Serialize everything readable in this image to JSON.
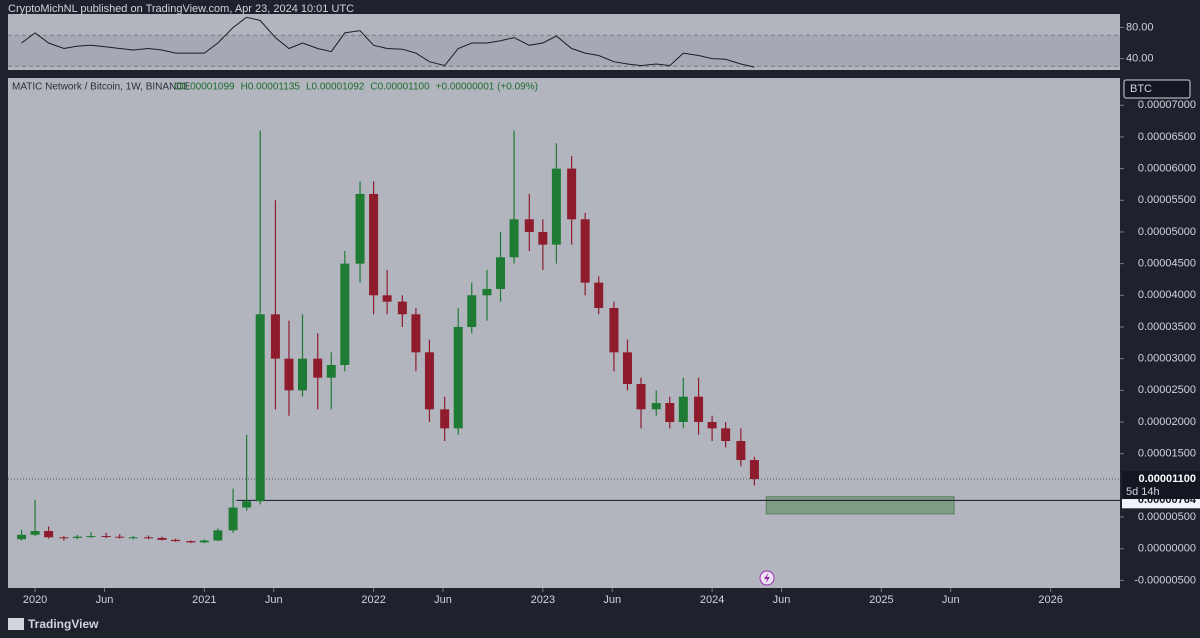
{
  "header": "CryptoMichNL published on TradingView.com, Apr 23, 2024 10:01 UTC",
  "footer": "TradingView",
  "chart_data": [
    {
      "type": "candlestick",
      "symbol": "MATIC Network / Bitcoin, 1W, BINANCE",
      "legend_items": [
        "O0.00001099",
        "H0.00001135",
        "L0.00001092",
        "C0.00001100",
        "+0.00000001 (+0.09%)"
      ],
      "currency": "BTC",
      "up_color": "#1e7b34",
      "down_color": "#8e1c2c",
      "x": [
        2019.92,
        2020.0,
        2020.08,
        2020.17,
        2020.25,
        2020.33,
        2020.42,
        2020.5,
        2020.58,
        2020.67,
        2020.75,
        2020.83,
        2020.92,
        2021.0,
        2021.08,
        2021.17,
        2021.25,
        2021.33,
        2021.42,
        2021.5,
        2021.58,
        2021.67,
        2021.75,
        2021.83,
        2021.92,
        2022.0,
        2022.08,
        2022.17,
        2022.25,
        2022.33,
        2022.42,
        2022.5,
        2022.58,
        2022.67,
        2022.75,
        2022.83,
        2022.92,
        2023.0,
        2023.08,
        2023.17,
        2023.25,
        2023.33,
        2023.42,
        2023.5,
        2023.58,
        2023.67,
        2023.75,
        2023.83,
        2023.92,
        2024.0,
        2024.08,
        2024.17,
        2024.25
      ],
      "open": [
        1.5e-06,
        2.2e-06,
        2.8e-06,
        1.8e-06,
        1.7e-06,
        1.9e-06,
        2e-06,
        1.9e-06,
        1.8e-06,
        1.8e-06,
        1.7e-06,
        1.4e-06,
        1.2e-06,
        1e-06,
        1.3e-06,
        2.9e-06,
        6.5e-06,
        7.5e-06,
        3.7e-05,
        3e-05,
        2.5e-05,
        3e-05,
        2.7e-05,
        2.9e-05,
        4.5e-05,
        5.6e-05,
        4e-05,
        3.9e-05,
        3.7e-05,
        3.1e-05,
        2.2e-05,
        1.9e-05,
        3.5e-05,
        4e-05,
        4.1e-05,
        4.6e-05,
        5.2e-05,
        5e-05,
        4.8e-05,
        6e-05,
        5.2e-05,
        4.2e-05,
        3.8e-05,
        3.1e-05,
        2.6e-05,
        2.2e-05,
        2.3e-05,
        2e-05,
        2.4e-05,
        2e-05,
        1.9e-05,
        1.7e-05,
        1.4e-05
      ],
      "high": [
        3e-06,
        7.7e-06,
        3.5e-06,
        2e-06,
        2.2e-06,
        2.6e-06,
        2.5e-06,
        2.3e-06,
        2e-06,
        2.1e-06,
        1.9e-06,
        1.6e-06,
        1.3e-06,
        1.5e-06,
        3.2e-06,
        9.5e-06,
        1.8e-05,
        6.6e-05,
        5.5e-05,
        3.6e-05,
        3.7e-05,
        3.4e-05,
        3.1e-05,
        4.7e-05,
        5.8e-05,
        5.8e-05,
        4.4e-05,
        4e-05,
        3.8e-05,
        3.3e-05,
        2.4e-05,
        3.8e-05,
        4.2e-05,
        4.4e-05,
        5e-05,
        6.6e-05,
        5.6e-05,
        5.2e-05,
        6.4e-05,
        6.2e-05,
        5.3e-05,
        4.3e-05,
        3.9e-05,
        3.3e-05,
        2.7e-05,
        2.5e-05,
        2.4e-05,
        2.7e-05,
        2.7e-05,
        2.1e-05,
        2e-05,
        1.9e-05,
        1.45e-05
      ],
      "low": [
        1.3e-06,
        2e-06,
        1.6e-06,
        1.3e-06,
        1.5e-06,
        1.7e-06,
        1.7e-06,
        1.6e-06,
        1.5e-06,
        1.5e-06,
        1.3e-06,
        1.1e-06,
        9e-07,
        9e-07,
        1.2e-06,
        2.5e-06,
        6e-06,
        7e-06,
        2.2e-05,
        2.1e-05,
        2.4e-05,
        2.2e-05,
        2.2e-05,
        2.8e-05,
        4.2e-05,
        3.7e-05,
        3.7e-05,
        3.5e-05,
        2.8e-05,
        2e-05,
        1.7e-05,
        1.8e-05,
        3.4e-05,
        3.6e-05,
        3.9e-05,
        4.5e-05,
        4.7e-05,
        4.4e-05,
        4.5e-05,
        4.8e-05,
        4e-05,
        3.7e-05,
        2.8e-05,
        2.5e-05,
        1.9e-05,
        2.1e-05,
        1.9e-05,
        1.9e-05,
        1.8e-05,
        1.7e-05,
        1.6e-05,
        1.3e-05,
        1e-05
      ],
      "close": [
        2.2e-06,
        2.8e-06,
        1.8e-06,
        1.7e-06,
        1.9e-06,
        2e-06,
        1.9e-06,
        1.8e-06,
        1.8e-06,
        1.7e-06,
        1.4e-06,
        1.2e-06,
        1e-06,
        1.3e-06,
        2.9e-06,
        6.5e-06,
        7.5e-06,
        3.7e-05,
        3e-05,
        2.5e-05,
        3e-05,
        2.7e-05,
        2.9e-05,
        4.5e-05,
        5.6e-05,
        4e-05,
        3.9e-05,
        3.7e-05,
        3.1e-05,
        2.2e-05,
        1.9e-05,
        3.5e-05,
        4e-05,
        4.1e-05,
        4.6e-05,
        5.2e-05,
        5e-05,
        4.8e-05,
        6e-05,
        5.2e-05,
        4.2e-05,
        3.8e-05,
        3.1e-05,
        2.6e-05,
        2.2e-05,
        2.3e-05,
        2e-05,
        2.4e-05,
        2e-05,
        1.9e-05,
        1.7e-05,
        1.4e-05,
        1.1e-05
      ],
      "xlim": [
        2019.84,
        2026.41
      ],
      "ylim": [
        -6.2e-06,
        7.43e-05
      ],
      "xticks": [
        {
          "value": 2020,
          "label": "2020"
        },
        {
          "value": 2020.41,
          "label": "Jun"
        },
        {
          "value": 2021,
          "label": "2021"
        },
        {
          "value": 2021.41,
          "label": "Jun"
        },
        {
          "value": 2022,
          "label": "2022"
        },
        {
          "value": 2022.41,
          "label": "Jun"
        },
        {
          "value": 2023,
          "label": "2023"
        },
        {
          "value": 2023.41,
          "label": "Jun"
        },
        {
          "value": 2024,
          "label": "2024"
        },
        {
          "value": 2024.41,
          "label": "Jun"
        },
        {
          "value": 2025,
          "label": "2025"
        },
        {
          "value": 2025.41,
          "label": "Jun"
        },
        {
          "value": 2026,
          "label": "2026"
        }
      ],
      "yticks": [
        {
          "value": 7e-05,
          "label": "0.00007000"
        },
        {
          "value": 6.5e-05,
          "label": "0.00006500"
        },
        {
          "value": 6e-05,
          "label": "0.00006000"
        },
        {
          "value": 5.5e-05,
          "label": "0.00005500"
        },
        {
          "value": 5e-05,
          "label": "0.00005000"
        },
        {
          "value": 4.5e-05,
          "label": "0.00004500"
        },
        {
          "value": 4e-05,
          "label": "0.00004000"
        },
        {
          "value": 3.5e-05,
          "label": "0.00003500"
        },
        {
          "value": 3e-05,
          "label": "0.00003000"
        },
        {
          "value": 2.5e-05,
          "label": "0.00002500"
        },
        {
          "value": 2e-05,
          "label": "0.00002000"
        },
        {
          "value": 1.5e-05,
          "label": "0.00001500"
        },
        {
          "value": 5e-06,
          "label": "0.00000500"
        },
        {
          "value": 0,
          "label": "0.00000000"
        },
        {
          "value": -5e-06,
          "label": "-0.00000500"
        }
      ],
      "level": {
        "value": 7.64e-06,
        "label": "0.00000764",
        "from": 2021.19
      },
      "last_price": {
        "value": 1.1e-05,
        "label": "0.00001100",
        "countdown": "5d 14h"
      },
      "zone": {
        "x": [
          2024.32,
          2025.43
        ],
        "y": [
          5.5e-06,
          8.2e-06
        ],
        "color": "#7f9c84"
      }
    },
    {
      "type": "line",
      "color": "#1a1d26",
      "x": [
        2019.92,
        2020.0,
        2020.08,
        2020.17,
        2020.25,
        2020.33,
        2020.42,
        2020.5,
        2020.58,
        2020.67,
        2020.75,
        2020.83,
        2020.92,
        2021.0,
        2021.08,
        2021.17,
        2021.25,
        2021.33,
        2021.42,
        2021.5,
        2021.58,
        2021.67,
        2021.75,
        2021.83,
        2021.92,
        2022.0,
        2022.08,
        2022.17,
        2022.25,
        2022.33,
        2022.42,
        2022.5,
        2022.58,
        2022.67,
        2022.75,
        2022.83,
        2022.92,
        2023.0,
        2023.08,
        2023.17,
        2023.25,
        2023.33,
        2023.42,
        2023.5,
        2023.58,
        2023.67,
        2023.75,
        2023.83,
        2023.92,
        2024.0,
        2024.08,
        2024.17,
        2024.25
      ],
      "values": [
        60,
        73,
        60,
        53,
        56,
        57,
        55,
        53,
        51,
        53,
        51,
        47,
        47,
        47,
        60,
        80,
        93,
        89,
        67,
        53,
        60,
        53,
        49,
        73,
        76,
        57,
        53,
        52,
        47,
        36,
        31,
        53,
        60,
        60,
        63,
        67,
        57,
        60,
        69,
        53,
        47,
        44,
        36,
        33,
        31,
        33,
        31,
        47,
        44,
        40,
        39,
        33,
        29
      ],
      "bands": [
        30,
        70
      ],
      "ylim": [
        25.3,
        97.3
      ],
      "yticks": [
        {
          "value": 80,
          "label": "80.00"
        },
        {
          "value": 40,
          "label": "40.00"
        }
      ]
    }
  ]
}
